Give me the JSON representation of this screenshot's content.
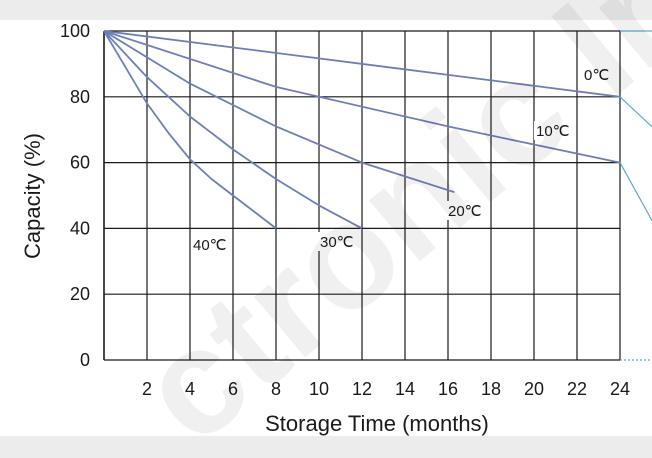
{
  "chart_data": {
    "type": "line",
    "xlabel": "Storage Time (months)",
    "ylabel": "Capacity  (%)",
    "xlim": [
      0,
      24
    ],
    "ylim": [
      0,
      100
    ],
    "x_ticks": [
      "2",
      "4",
      "6",
      "8",
      "10",
      "12",
      "14",
      "16",
      "18",
      "20",
      "22",
      "24"
    ],
    "y_ticks": [
      "0",
      "20",
      "40",
      "60",
      "80",
      "100"
    ],
    "grid": true,
    "colors": {
      "series": "#6d7fb8",
      "grid": "#1a1a1a",
      "accent": "#5aa9d6"
    },
    "series": [
      {
        "name": "0℃",
        "x": [
          0,
          24
        ],
        "y": [
          100,
          80
        ]
      },
      {
        "name": "10℃",
        "x": [
          0,
          8,
          16,
          24
        ],
        "y": [
          100,
          83,
          71,
          60
        ]
      },
      {
        "name": "20℃",
        "x": [
          0,
          4,
          8,
          12,
          16.3
        ],
        "y": [
          100,
          84,
          71,
          60,
          51
        ]
      },
      {
        "name": "30℃",
        "x": [
          0,
          2,
          4,
          6,
          8,
          10,
          12
        ],
        "y": [
          100,
          86,
          74,
          64,
          55,
          47,
          40
        ]
      },
      {
        "name": "40℃",
        "x": [
          0,
          1,
          2,
          3,
          4,
          5,
          6,
          7,
          8
        ],
        "y": [
          100,
          89,
          78,
          69,
          61,
          55,
          50,
          45,
          40
        ]
      }
    ]
  },
  "watermark": "ctronic Ind"
}
